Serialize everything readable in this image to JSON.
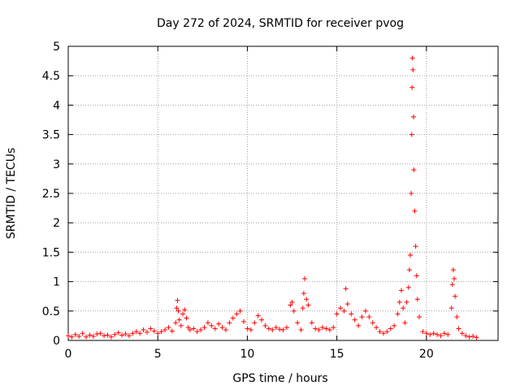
{
  "chart_data": {
    "type": "scatter",
    "title": "Day 272 of 2024, SRMTID for receiver pvog",
    "xlabel": "GPS time / hours",
    "ylabel": "SRMTID / TECUs",
    "xlim": [
      0,
      24
    ],
    "ylim": [
      0,
      5
    ],
    "x_ticks": [
      0,
      5,
      10,
      15,
      20
    ],
    "x_tick_labels": [
      "0",
      "5",
      "10",
      "15",
      "20"
    ],
    "y_ticks": [
      0,
      0.5,
      1,
      1.5,
      2,
      2.5,
      3,
      3.5,
      4,
      4.5,
      5
    ],
    "y_tick_labels": [
      "0",
      "0.5",
      "1",
      "1.5",
      "2",
      "2.5",
      "3",
      "3.5",
      "4",
      "4.5",
      "5"
    ],
    "grid": true,
    "marker": "+",
    "marker_color": "#ff0000",
    "series": [
      {
        "name": "SRMTID",
        "points": [
          [
            0.0,
            0.08
          ],
          [
            0.2,
            0.06
          ],
          [
            0.4,
            0.1
          ],
          [
            0.6,
            0.07
          ],
          [
            0.8,
            0.12
          ],
          [
            1.0,
            0.06
          ],
          [
            1.2,
            0.09
          ],
          [
            1.4,
            0.07
          ],
          [
            1.6,
            0.11
          ],
          [
            1.8,
            0.12
          ],
          [
            2.0,
            0.08
          ],
          [
            2.2,
            0.09
          ],
          [
            2.4,
            0.06
          ],
          [
            2.6,
            0.1
          ],
          [
            2.8,
            0.13
          ],
          [
            3.0,
            0.09
          ],
          [
            3.2,
            0.11
          ],
          [
            3.4,
            0.08
          ],
          [
            3.6,
            0.12
          ],
          [
            3.8,
            0.15
          ],
          [
            4.0,
            0.12
          ],
          [
            4.2,
            0.18
          ],
          [
            4.4,
            0.14
          ],
          [
            4.6,
            0.2
          ],
          [
            4.8,
            0.16
          ],
          [
            5.0,
            0.12
          ],
          [
            5.2,
            0.15
          ],
          [
            5.4,
            0.18
          ],
          [
            5.6,
            0.22
          ],
          [
            5.8,
            0.16
          ],
          [
            6.0,
            0.3
          ],
          [
            6.05,
            0.55
          ],
          [
            6.1,
            0.68
          ],
          [
            6.15,
            0.5
          ],
          [
            6.2,
            0.35
          ],
          [
            6.3,
            0.25
          ],
          [
            6.4,
            0.45
          ],
          [
            6.5,
            0.52
          ],
          [
            6.6,
            0.38
          ],
          [
            6.7,
            0.22
          ],
          [
            6.8,
            0.18
          ],
          [
            7.0,
            0.2
          ],
          [
            7.2,
            0.15
          ],
          [
            7.4,
            0.18
          ],
          [
            7.6,
            0.22
          ],
          [
            7.8,
            0.3
          ],
          [
            8.0,
            0.25
          ],
          [
            8.2,
            0.2
          ],
          [
            8.4,
            0.28
          ],
          [
            8.6,
            0.22
          ],
          [
            8.8,
            0.18
          ],
          [
            9.0,
            0.3
          ],
          [
            9.2,
            0.38
          ],
          [
            9.4,
            0.45
          ],
          [
            9.6,
            0.5
          ],
          [
            9.8,
            0.32
          ],
          [
            10.0,
            0.2
          ],
          [
            10.2,
            0.18
          ],
          [
            10.4,
            0.3
          ],
          [
            10.6,
            0.42
          ],
          [
            10.8,
            0.35
          ],
          [
            11.0,
            0.25
          ],
          [
            11.2,
            0.2
          ],
          [
            11.4,
            0.18
          ],
          [
            11.6,
            0.22
          ],
          [
            11.8,
            0.19
          ],
          [
            12.0,
            0.18
          ],
          [
            12.2,
            0.22
          ],
          [
            12.4,
            0.6
          ],
          [
            12.5,
            0.65
          ],
          [
            12.6,
            0.5
          ],
          [
            12.8,
            0.3
          ],
          [
            13.0,
            0.18
          ],
          [
            13.1,
            0.55
          ],
          [
            13.15,
            0.8
          ],
          [
            13.2,
            1.05
          ],
          [
            13.3,
            0.7
          ],
          [
            13.4,
            0.6
          ],
          [
            13.6,
            0.3
          ],
          [
            13.8,
            0.2
          ],
          [
            14.0,
            0.18
          ],
          [
            14.2,
            0.22
          ],
          [
            14.4,
            0.2
          ],
          [
            14.6,
            0.18
          ],
          [
            14.8,
            0.22
          ],
          [
            15.0,
            0.45
          ],
          [
            15.2,
            0.55
          ],
          [
            15.4,
            0.5
          ],
          [
            15.5,
            0.88
          ],
          [
            15.6,
            0.62
          ],
          [
            15.8,
            0.45
          ],
          [
            16.0,
            0.35
          ],
          [
            16.2,
            0.25
          ],
          [
            16.4,
            0.4
          ],
          [
            16.6,
            0.5
          ],
          [
            16.8,
            0.4
          ],
          [
            17.0,
            0.3
          ],
          [
            17.2,
            0.22
          ],
          [
            17.4,
            0.15
          ],
          [
            17.6,
            0.12
          ],
          [
            17.8,
            0.15
          ],
          [
            18.0,
            0.2
          ],
          [
            18.2,
            0.25
          ],
          [
            18.4,
            0.45
          ],
          [
            18.5,
            0.65
          ],
          [
            18.6,
            0.85
          ],
          [
            18.7,
            0.55
          ],
          [
            18.8,
            0.3
          ],
          [
            18.9,
            0.65
          ],
          [
            19.0,
            0.9
          ],
          [
            19.05,
            1.2
          ],
          [
            19.1,
            1.45
          ],
          [
            19.15,
            2.5
          ],
          [
            19.18,
            3.5
          ],
          [
            19.2,
            4.3
          ],
          [
            19.22,
            4.8
          ],
          [
            19.25,
            4.6
          ],
          [
            19.28,
            3.8
          ],
          [
            19.3,
            2.9
          ],
          [
            19.35,
            2.2
          ],
          [
            19.4,
            1.6
          ],
          [
            19.45,
            1.1
          ],
          [
            19.5,
            0.7
          ],
          [
            19.6,
            0.4
          ],
          [
            19.8,
            0.15
          ],
          [
            20.0,
            0.12
          ],
          [
            20.2,
            0.1
          ],
          [
            20.4,
            0.12
          ],
          [
            20.6,
            0.1
          ],
          [
            20.8,
            0.08
          ],
          [
            21.0,
            0.12
          ],
          [
            21.2,
            0.1
          ],
          [
            21.4,
            0.55
          ],
          [
            21.45,
            0.95
          ],
          [
            21.5,
            1.2
          ],
          [
            21.55,
            1.05
          ],
          [
            21.6,
            0.75
          ],
          [
            21.7,
            0.4
          ],
          [
            21.8,
            0.2
          ],
          [
            22.0,
            0.12
          ],
          [
            22.2,
            0.08
          ],
          [
            22.4,
            0.06
          ],
          [
            22.6,
            0.07
          ],
          [
            22.8,
            0.05
          ]
        ]
      }
    ]
  }
}
